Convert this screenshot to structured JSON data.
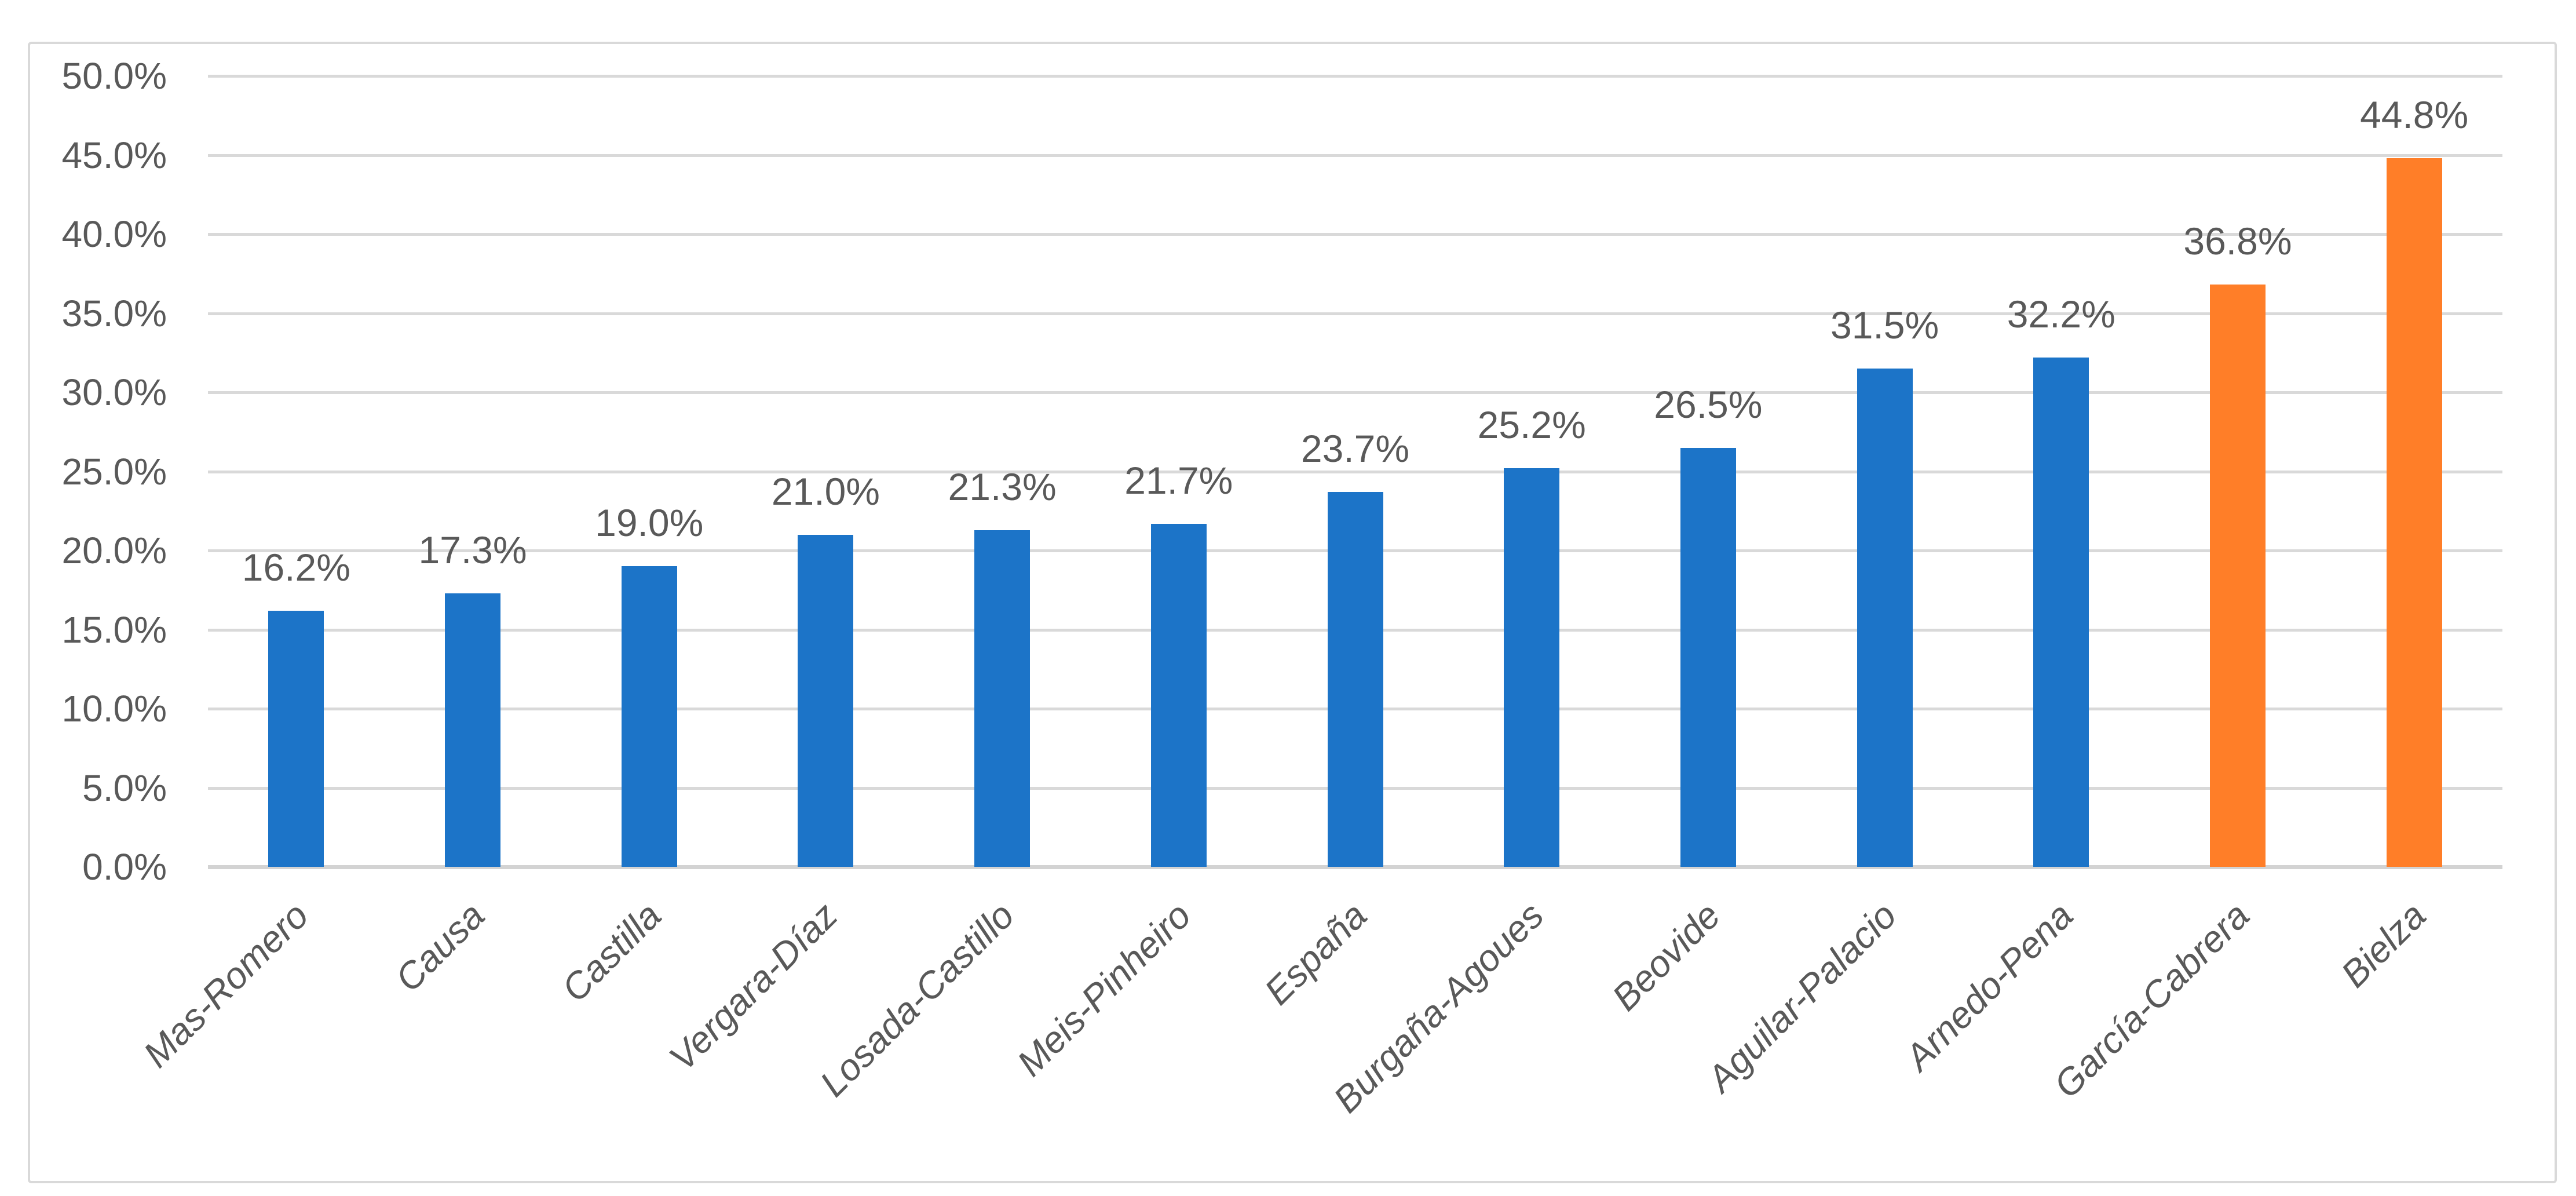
{
  "chart_data": {
    "type": "bar",
    "title": "",
    "xlabel": "",
    "ylabel": "",
    "categories": [
      "Mas-Romero",
      "Causa",
      "Castilla",
      "Vergara-Díaz",
      "Losada-Castillo",
      "Meis-Pinheiro",
      "España",
      "Burgaña-Agoues",
      "Beovide",
      "Aguilar-Palacio",
      "Arnedo-Pena",
      "García-Cabrera",
      "Bielza"
    ],
    "values": [
      16.2,
      17.3,
      19.0,
      21.0,
      21.3,
      21.7,
      23.7,
      25.2,
      26.5,
      31.5,
      32.2,
      36.8,
      44.8
    ],
    "value_labels": [
      "16.2%",
      "17.3%",
      "19.0%",
      "21.0%",
      "21.3%",
      "21.7%",
      "23.7%",
      "25.2%",
      "26.5%",
      "31.5%",
      "32.2%",
      "36.8%",
      "44.8%"
    ],
    "highlight_indices": [
      11,
      12
    ],
    "colors": {
      "bar_default": "#1C74C8",
      "bar_highlight": "#FF7E28",
      "text": "#595959",
      "gridline": "#D9D9D9"
    },
    "ylim": [
      0,
      50
    ],
    "ytick_step": 5,
    "yticks": [
      "0.0%",
      "5.0%",
      "10.0%",
      "15.0%",
      "20.0%",
      "25.0%",
      "30.0%",
      "35.0%",
      "40.0%",
      "45.0%",
      "50.0%"
    ],
    "grid": true,
    "legend": "none"
  }
}
